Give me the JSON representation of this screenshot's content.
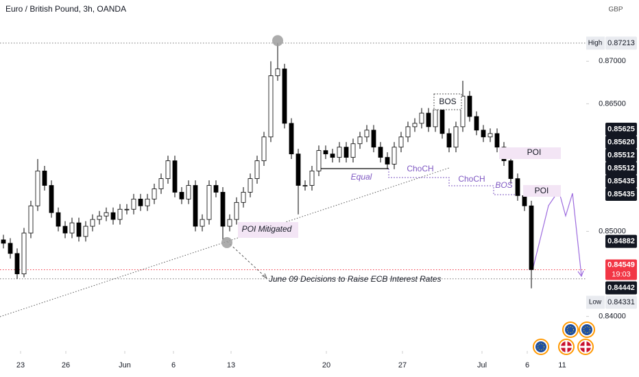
{
  "chart_data": {
    "type": "candlestick",
    "title": "Euro / British Pound, 3h, OANDA",
    "currency": "GBP",
    "up_color": "#ffffff",
    "down_color": "#000000",
    "xlim": [
      -0.5,
      85
    ],
    "ylim": [
      0.8361,
      0.8772
    ],
    "xticks": [
      {
        "value": 2.5,
        "label": "23"
      },
      {
        "value": 9.1,
        "label": "26"
      },
      {
        "value": 17.7,
        "label": "Jun"
      },
      {
        "value": 24.8,
        "label": "6"
      },
      {
        "value": 33.2,
        "label": "13"
      },
      {
        "value": 47.1,
        "label": "20"
      },
      {
        "value": 58.2,
        "label": "27"
      },
      {
        "value": 69.8,
        "label": "Jul"
      },
      {
        "value": 76.4,
        "label": "6"
      },
      {
        "value": 81.5,
        "label": "11"
      }
    ],
    "yticks": [
      {
        "value": 0.87,
        "label": "0.87000"
      },
      {
        "value": 0.865,
        "label": "0.86500"
      },
      {
        "value": 0.85,
        "label": "0.85000"
      },
      {
        "value": 0.84,
        "label": "0.84000"
      }
    ],
    "open": [
      0.849,
      0.8486,
      0.8474,
      0.845,
      0.8498,
      0.853,
      0.8571,
      0.8554,
      0.8522,
      0.8506,
      0.8498,
      0.851,
      0.8494,
      0.8506,
      0.8514,
      0.8518,
      0.8522,
      0.8514,
      0.8526,
      0.8526,
      0.8538,
      0.853,
      0.8538,
      0.855,
      0.8562,
      0.8583,
      0.8546,
      0.8538,
      0.8554,
      0.8506,
      0.8514,
      0.8554,
      0.8546,
      0.8506,
      0.8514,
      0.8534,
      0.8546,
      0.8562,
      0.8583,
      0.8611,
      0.8683,
      0.8691,
      0.8627,
      0.8591,
      0.8554,
      0.8554,
      0.8571,
      0.8595,
      0.8591,
      0.8587,
      0.8599,
      0.8587,
      0.8603,
      0.8611,
      0.8619,
      0.8599,
      0.8587,
      0.8579,
      0.8599,
      0.8611,
      0.8623,
      0.8627,
      0.8639,
      0.8623,
      0.8643,
      0.8615,
      0.8599,
      0.8623,
      0.8659,
      0.8635,
      0.8619,
      0.8611,
      0.8615,
      0.8599,
      0.8583,
      0.8562,
      0.8542,
      0.853
    ],
    "high": [
      0.8496,
      0.8492,
      0.848,
      0.8504,
      0.8536,
      0.8585,
      0.8577,
      0.856,
      0.8528,
      0.8512,
      0.8516,
      0.8516,
      0.8512,
      0.852,
      0.8524,
      0.8528,
      0.8528,
      0.8532,
      0.8532,
      0.8544,
      0.8544,
      0.8544,
      0.8556,
      0.8568,
      0.8589,
      0.8589,
      0.8552,
      0.856,
      0.856,
      0.852,
      0.856,
      0.856,
      0.8552,
      0.852,
      0.854,
      0.8552,
      0.8568,
      0.8589,
      0.8617,
      0.87,
      0.8721,
      0.8697,
      0.8633,
      0.8597,
      0.856,
      0.8577,
      0.8601,
      0.8601,
      0.8597,
      0.8605,
      0.8605,
      0.8609,
      0.8617,
      0.8625,
      0.8625,
      0.8605,
      0.8593,
      0.8605,
      0.8617,
      0.8629,
      0.8633,
      0.8645,
      0.8645,
      0.8649,
      0.8649,
      0.8621,
      0.8629,
      0.8677,
      0.8665,
      0.8641,
      0.8625,
      0.8621,
      0.8621,
      0.8605,
      0.8589,
      0.8568,
      0.8548,
      0.8536
    ],
    "low": [
      0.848,
      0.8468,
      0.8444,
      0.8446,
      0.8492,
      0.8524,
      0.8548,
      0.8516,
      0.85,
      0.8492,
      0.8492,
      0.8488,
      0.8488,
      0.85,
      0.8508,
      0.8512,
      0.8508,
      0.8508,
      0.852,
      0.852,
      0.8524,
      0.8524,
      0.8532,
      0.8544,
      0.8556,
      0.854,
      0.8532,
      0.8532,
      0.85,
      0.85,
      0.8508,
      0.854,
      0.849,
      0.85,
      0.8508,
      0.8528,
      0.854,
      0.8556,
      0.8577,
      0.8605,
      0.8677,
      0.8621,
      0.8585,
      0.852,
      0.8548,
      0.8548,
      0.8565,
      0.8585,
      0.8581,
      0.8581,
      0.8581,
      0.8581,
      0.8597,
      0.8605,
      0.8593,
      0.8581,
      0.8573,
      0.8573,
      0.8593,
      0.8605,
      0.8617,
      0.8621,
      0.8617,
      0.8617,
      0.8609,
      0.8593,
      0.8593,
      0.8617,
      0.8629,
      0.8613,
      0.8605,
      0.8605,
      0.8593,
      0.8577,
      0.8556,
      0.8536,
      0.8524,
      0.8433
    ],
    "close": [
      0.8486,
      0.8474,
      0.845,
      0.8498,
      0.853,
      0.8571,
      0.8554,
      0.8522,
      0.8506,
      0.8498,
      0.851,
      0.8494,
      0.8506,
      0.8514,
      0.8518,
      0.8522,
      0.8514,
      0.8526,
      0.8526,
      0.8538,
      0.853,
      0.8538,
      0.855,
      0.8562,
      0.8583,
      0.8546,
      0.8538,
      0.8554,
      0.8506,
      0.8514,
      0.8554,
      0.8546,
      0.8506,
      0.8514,
      0.8534,
      0.8546,
      0.8562,
      0.8583,
      0.8611,
      0.8683,
      0.8691,
      0.8627,
      0.8591,
      0.8554,
      0.8554,
      0.8571,
      0.8595,
      0.8591,
      0.8587,
      0.8599,
      0.8587,
      0.8603,
      0.8611,
      0.8619,
      0.8599,
      0.8587,
      0.8579,
      0.8599,
      0.8611,
      0.8623,
      0.8627,
      0.8639,
      0.8623,
      0.8643,
      0.8615,
      0.8599,
      0.8623,
      0.8659,
      0.8635,
      0.8619,
      0.8611,
      0.8615,
      0.8599,
      0.8583,
      0.8562,
      0.8542,
      0.853,
      0.8455
    ],
    "price_badges": [
      {
        "value": 0.87213,
        "label": "0.87213",
        "tag": "High",
        "style": "light"
      },
      {
        "value": 0.85625,
        "label": "0.85625",
        "style": "dark"
      },
      {
        "value": 0.8562,
        "label": "0.85620",
        "style": "dark"
      },
      {
        "value": 0.85512,
        "label": "0.85512",
        "style": "dark"
      },
      {
        "value": 0.85512,
        "label": "0.85512",
        "style": "dark"
      },
      {
        "value": 0.85435,
        "label": "0.85435",
        "style": "dark"
      },
      {
        "value": 0.85435,
        "label": "0.85435",
        "style": "dark"
      },
      {
        "value": 0.84882,
        "label": "0.84882",
        "style": "dark"
      },
      {
        "value": 0.84549,
        "label": "0.84549",
        "time": "19:03",
        "style": "current"
      },
      {
        "value": 0.84442,
        "label": "0.84442",
        "style": "dark"
      },
      {
        "value": 0.84331,
        "label": "0.84331",
        "tag": "Low",
        "style": "light"
      }
    ],
    "annotations": [
      "BOS",
      "POI",
      "ChoCH",
      "Equal",
      "ChoCH",
      "BOS",
      "POI",
      "POI Mitigated",
      "June 09 Decisions to Raise ECB Interest Rates"
    ]
  }
}
